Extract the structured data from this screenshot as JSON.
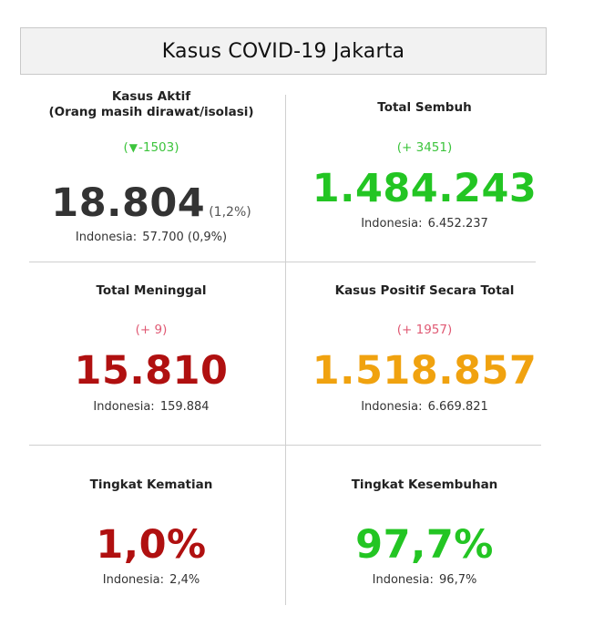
{
  "header": {
    "title": "Kasus COVID-19 Jakarta"
  },
  "cells": {
    "active": {
      "label_line1": "Kasus Aktif",
      "label_line2": "(Orang masih dirawat/isolasi)",
      "delta_open": "(",
      "delta_icon": "▼",
      "delta_value": "-1503)",
      "value": "18.804",
      "pct": "(1,2%)",
      "indonesia_label": "Indonesia:",
      "indonesia_value": "57.700 (0,9%)"
    },
    "recovered": {
      "label": "Total Sembuh",
      "delta": "(+ 3451)",
      "value": "1.484.243",
      "indonesia_label": "Indonesia:",
      "indonesia_value": "6.452.237"
    },
    "deaths": {
      "label": "Total Meninggal",
      "delta": "(+ 9)",
      "value": "15.810",
      "indonesia_label": "Indonesia:",
      "indonesia_value": "159.884"
    },
    "total_positive": {
      "label": "Kasus Positif Secara Total",
      "delta": "(+ 1957)",
      "value": "1.518.857",
      "indonesia_label": "Indonesia:",
      "indonesia_value": "6.669.821"
    },
    "death_rate": {
      "label": "Tingkat Kematian",
      "value": "1,0%",
      "indonesia_label": "Indonesia:",
      "indonesia_value": "2,4%"
    },
    "recovery_rate": {
      "label": "Tingkat Kesembuhan",
      "value": "97,7%",
      "indonesia_label": "Indonesia:",
      "indonesia_value": "96,7%"
    }
  },
  "colors": {
    "green": "#23c523",
    "delta_green": "#3cc43c",
    "red": "#b01010",
    "delta_red": "#e05a74",
    "orange": "#f0a20f",
    "dark": "#333333"
  },
  "icons": {
    "active_delta_icon": "down-triangle-icon"
  }
}
